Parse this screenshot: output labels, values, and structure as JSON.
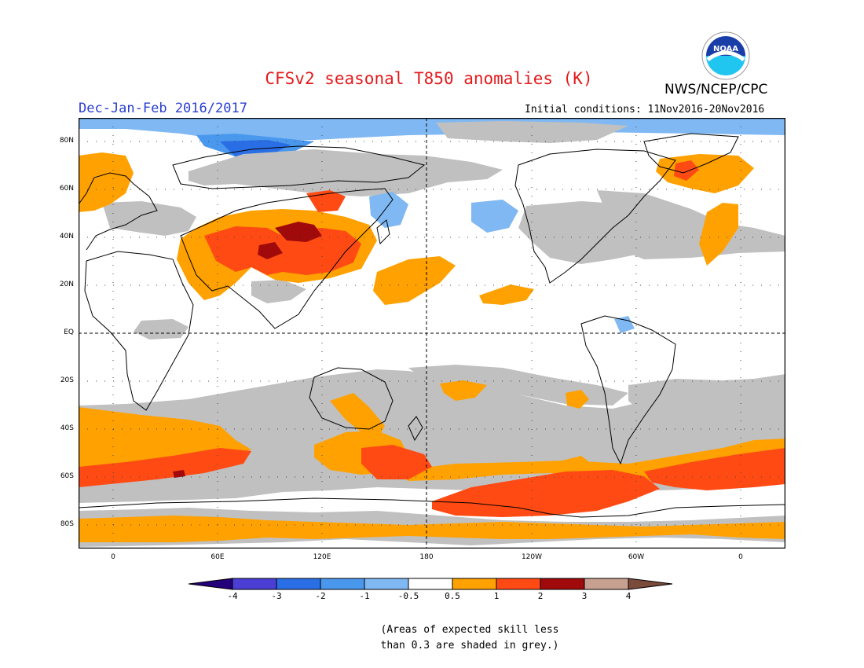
{
  "header": {
    "title": "CFSv2 seasonal T850 anomalies (K)",
    "agency": "NWS/NCEP/CPC",
    "logo_text": "NOAA",
    "season": "Dec-Jan-Feb 2016/2017",
    "initial_conditions": "Initial conditions: 11Nov2016-20Nov2016"
  },
  "map": {
    "lat_labels": [
      "80N",
      "60N",
      "40N",
      "20N",
      "EQ",
      "20S",
      "40S",
      "60S",
      "80S"
    ],
    "lon_labels": [
      "0",
      "60E",
      "120E",
      "180",
      "120W",
      "60W",
      "0"
    ],
    "grey_meaning": "skill < 0.3"
  },
  "legend": {
    "tick_labels": [
      "-4",
      "-3",
      "-2",
      "-1",
      "-0.5",
      "0.5",
      "1",
      "2",
      "3",
      "4"
    ],
    "colors": {
      "lt_minus4": "#24007a",
      "m4_m3": "#4a3ed4",
      "m3_m2": "#2a6ee6",
      "m2_m1": "#4a98ee",
      "m1_m05": "#7fb8f2",
      "neutral": "#ffffff",
      "p05_1": "#ffa100",
      "p1_2": "#ff4a14",
      "p2_3": "#a00a0a",
      "p3_4": "#c8a090",
      "gt_4": "#7a4a3a",
      "grey": "#c0c0c0"
    }
  },
  "note": {
    "line1": "(Areas of expected skill less",
    "line2": "than 0.3 are shaded in grey.)"
  }
}
